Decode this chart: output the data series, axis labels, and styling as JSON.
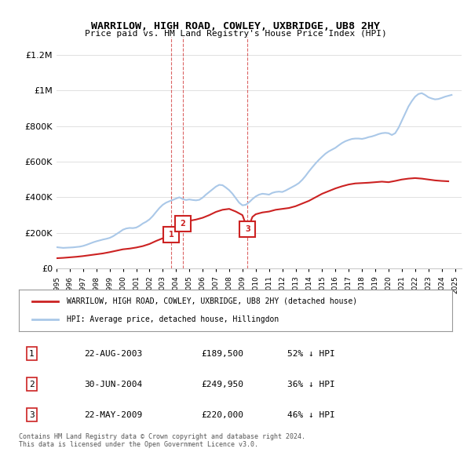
{
  "title": "WARRILOW, HIGH ROAD, COWLEY, UXBRIDGE, UB8 2HY",
  "subtitle": "Price paid vs. HM Land Registry's House Price Index (HPI)",
  "ylabel": "",
  "ylim": [
    0,
    1300000
  ],
  "yticks": [
    0,
    200000,
    400000,
    600000,
    800000,
    1000000,
    1200000
  ],
  "ytick_labels": [
    "£0",
    "£200K",
    "£400K",
    "£600K",
    "£800K",
    "£1M",
    "£1.2M"
  ],
  "xlim_start": 1995.0,
  "xlim_end": 2025.5,
  "background_color": "#ffffff",
  "grid_color": "#e0e0e0",
  "hpi_color": "#aac8e8",
  "price_color": "#cc2222",
  "transactions": [
    {
      "date_num": 2003.64,
      "price": 189500,
      "label": "1"
    },
    {
      "date_num": 2004.49,
      "price": 249950,
      "label": "2"
    },
    {
      "date_num": 2009.39,
      "price": 220000,
      "label": "3"
    }
  ],
  "transaction_table": [
    {
      "num": "1",
      "date": "22-AUG-2003",
      "price": "£189,500",
      "pct": "52% ↓ HPI"
    },
    {
      "num": "2",
      "date": "30-JUN-2004",
      "price": "£249,950",
      "pct": "36% ↓ HPI"
    },
    {
      "num": "3",
      "date": "22-MAY-2009",
      "price": "£220,000",
      "pct": "46% ↓ HPI"
    }
  ],
  "legend_line1": "WARRILOW, HIGH ROAD, COWLEY, UXBRIDGE, UB8 2HY (detached house)",
  "legend_line2": "HPI: Average price, detached house, Hillingdon",
  "footnote": "Contains HM Land Registry data © Crown copyright and database right 2024.\nThis data is licensed under the Open Government Licence v3.0.",
  "hpi_data": {
    "years": [
      1995.0,
      1995.25,
      1995.5,
      1995.75,
      1996.0,
      1996.25,
      1996.5,
      1996.75,
      1997.0,
      1997.25,
      1997.5,
      1997.75,
      1998.0,
      1998.25,
      1998.5,
      1998.75,
      1999.0,
      1999.25,
      1999.5,
      1999.75,
      2000.0,
      2000.25,
      2000.5,
      2000.75,
      2001.0,
      2001.25,
      2001.5,
      2001.75,
      2002.0,
      2002.25,
      2002.5,
      2002.75,
      2003.0,
      2003.25,
      2003.5,
      2003.75,
      2004.0,
      2004.25,
      2004.5,
      2004.75,
      2005.0,
      2005.25,
      2005.5,
      2005.75,
      2006.0,
      2006.25,
      2006.5,
      2006.75,
      2007.0,
      2007.25,
      2007.5,
      2007.75,
      2008.0,
      2008.25,
      2008.5,
      2008.75,
      2009.0,
      2009.25,
      2009.5,
      2009.75,
      2010.0,
      2010.25,
      2010.5,
      2010.75,
      2011.0,
      2011.25,
      2011.5,
      2011.75,
      2012.0,
      2012.25,
      2012.5,
      2012.75,
      2013.0,
      2013.25,
      2013.5,
      2013.75,
      2014.0,
      2014.25,
      2014.5,
      2014.75,
      2015.0,
      2015.25,
      2015.5,
      2015.75,
      2016.0,
      2016.25,
      2016.5,
      2016.75,
      2017.0,
      2017.25,
      2017.5,
      2017.75,
      2018.0,
      2018.25,
      2018.5,
      2018.75,
      2019.0,
      2019.25,
      2019.5,
      2019.75,
      2020.0,
      2020.25,
      2020.5,
      2020.75,
      2021.0,
      2021.25,
      2021.5,
      2021.75,
      2022.0,
      2022.25,
      2022.5,
      2022.75,
      2023.0,
      2023.25,
      2023.5,
      2023.75,
      2024.0,
      2024.25,
      2024.5,
      2024.75
    ],
    "values": [
      120000,
      118000,
      116000,
      117000,
      118000,
      119000,
      121000,
      123000,
      127000,
      133000,
      140000,
      147000,
      153000,
      158000,
      163000,
      167000,
      172000,
      181000,
      193000,
      205000,
      218000,
      225000,
      228000,
      227000,
      230000,
      240000,
      253000,
      263000,
      276000,
      295000,
      318000,
      340000,
      358000,
      370000,
      378000,
      385000,
      393000,
      400000,
      390000,
      385000,
      388000,
      385000,
      383000,
      386000,
      398000,
      415000,
      430000,
      445000,
      460000,
      470000,
      468000,
      455000,
      440000,
      420000,
      395000,
      370000,
      355000,
      358000,
      372000,
      390000,
      405000,
      415000,
      420000,
      418000,
      415000,
      425000,
      430000,
      432000,
      430000,
      438000,
      448000,
      458000,
      468000,
      480000,
      498000,
      520000,
      545000,
      568000,
      590000,
      610000,
      628000,
      645000,
      658000,
      668000,
      678000,
      692000,
      705000,
      715000,
      722000,
      728000,
      730000,
      730000,
      728000,
      732000,
      738000,
      742000,
      748000,
      755000,
      760000,
      762000,
      760000,
      750000,
      760000,
      790000,
      830000,
      870000,
      910000,
      940000,
      965000,
      980000,
      985000,
      975000,
      962000,
      955000,
      950000,
      952000,
      958000,
      965000,
      970000,
      975000
    ]
  },
  "price_line_data": {
    "years": [
      1995.0,
      1995.5,
      1996.0,
      1996.5,
      1997.0,
      1997.5,
      1998.0,
      1998.5,
      1999.0,
      1999.5,
      2000.0,
      2000.5,
      2001.0,
      2001.5,
      2002.0,
      2002.5,
      2003.0,
      2003.25,
      2003.5,
      2003.75,
      2003.64,
      2004.0,
      2004.49,
      2004.75,
      2005.0,
      2005.5,
      2006.0,
      2006.5,
      2007.0,
      2007.5,
      2008.0,
      2008.5,
      2009.0,
      2009.39,
      2009.75,
      2010.0,
      2010.5,
      2011.0,
      2011.5,
      2012.0,
      2012.5,
      2013.0,
      2013.5,
      2014.0,
      2014.5,
      2015.0,
      2015.5,
      2016.0,
      2016.5,
      2017.0,
      2017.5,
      2018.0,
      2018.5,
      2019.0,
      2019.5,
      2020.0,
      2020.5,
      2021.0,
      2021.5,
      2022.0,
      2022.5,
      2023.0,
      2023.5,
      2024.0,
      2024.5
    ],
    "values": [
      58000,
      60000,
      63000,
      66000,
      70000,
      75000,
      80000,
      85000,
      92000,
      100000,
      108000,
      112000,
      118000,
      126000,
      138000,
      155000,
      170000,
      180000,
      189500,
      200000,
      189500,
      225000,
      249950,
      260000,
      268000,
      275000,
      285000,
      300000,
      318000,
      330000,
      335000,
      320000,
      300000,
      220000,
      290000,
      305000,
      315000,
      320000,
      330000,
      335000,
      340000,
      350000,
      365000,
      380000,
      400000,
      420000,
      435000,
      450000,
      462000,
      472000,
      478000,
      480000,
      482000,
      485000,
      488000,
      485000,
      492000,
      500000,
      505000,
      508000,
      505000,
      500000,
      495000,
      492000,
      490000
    ]
  }
}
